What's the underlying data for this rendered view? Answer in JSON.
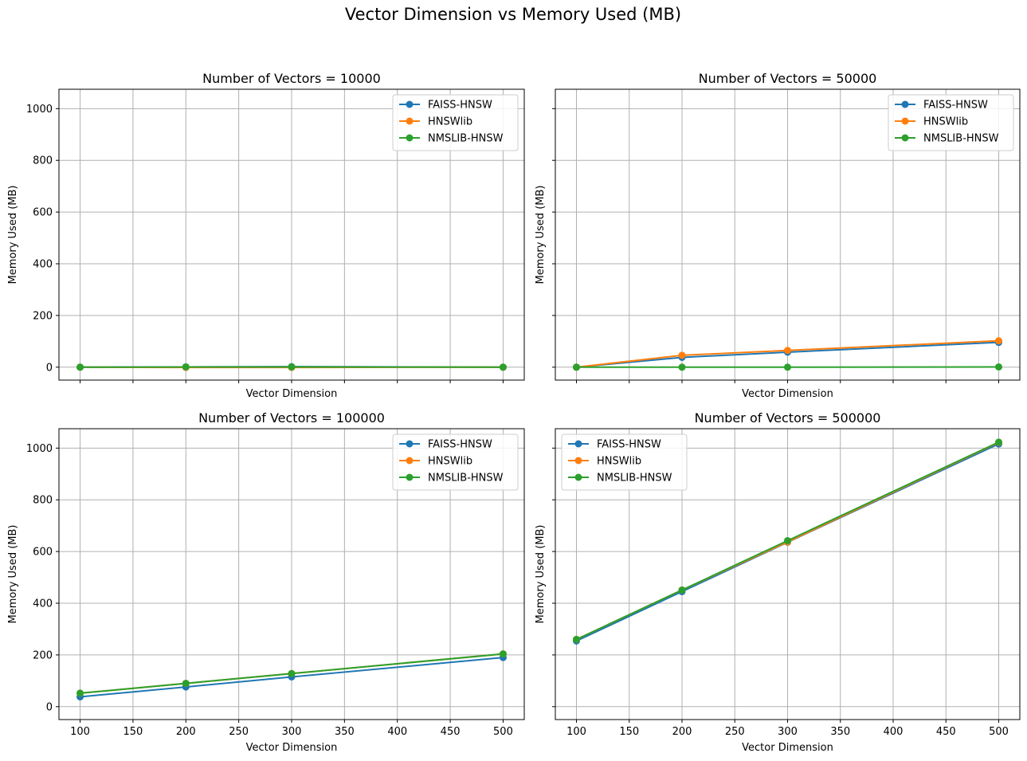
{
  "figure": {
    "title": "Vector Dimension vs Memory Used (MB)"
  },
  "chart_data": [
    {
      "type": "line",
      "title": "Number of Vectors = 10000",
      "xlabel": "Vector Dimension",
      "ylabel": "Memory Used (MB)",
      "x": [
        100,
        200,
        300,
        500
      ],
      "xlim": [
        80,
        520
      ],
      "ylim": [
        -50,
        1075
      ],
      "xticks": [
        100,
        150,
        200,
        250,
        300,
        350,
        400,
        450,
        500
      ],
      "yticks": [
        0,
        200,
        400,
        600,
        800,
        1000
      ],
      "show_xticklabels": false,
      "show_yticklabels": true,
      "grid": true,
      "legend_loc": "upper right",
      "series": [
        {
          "name": "FAISS-HNSW",
          "values": [
            0,
            1,
            2,
            0
          ]
        },
        {
          "name": "HNSWlib",
          "values": [
            0,
            -1,
            -1,
            0
          ]
        },
        {
          "name": "NMSLIB-HNSW",
          "values": [
            0,
            1,
            1,
            0
          ]
        }
      ]
    },
    {
      "type": "line",
      "title": "Number of Vectors = 50000",
      "xlabel": "Vector Dimension",
      "ylabel": "Memory Used (MB)",
      "x": [
        100,
        200,
        300,
        500
      ],
      "xlim": [
        80,
        520
      ],
      "ylim": [
        -50,
        1075
      ],
      "xticks": [
        100,
        150,
        200,
        250,
        300,
        350,
        400,
        450,
        500
      ],
      "yticks": [
        0,
        200,
        400,
        600,
        800,
        1000
      ],
      "show_xticklabels": false,
      "show_yticklabels": false,
      "grid": true,
      "legend_loc": "upper right",
      "series": [
        {
          "name": "FAISS-HNSW",
          "values": [
            0,
            38,
            58,
            96
          ]
        },
        {
          "name": "HNSWlib",
          "values": [
            0,
            46,
            65,
            102
          ]
        },
        {
          "name": "NMSLIB-HNSW",
          "values": [
            0,
            0,
            0,
            1
          ]
        }
      ]
    },
    {
      "type": "line",
      "title": "Number of Vectors = 100000",
      "xlabel": "Vector Dimension",
      "ylabel": "Memory Used (MB)",
      "x": [
        100,
        200,
        300,
        500
      ],
      "xlim": [
        80,
        520
      ],
      "ylim": [
        -50,
        1075
      ],
      "xticks": [
        100,
        150,
        200,
        250,
        300,
        350,
        400,
        450,
        500
      ],
      "yticks": [
        0,
        200,
        400,
        600,
        800,
        1000
      ],
      "show_xticklabels": true,
      "show_yticklabels": true,
      "grid": true,
      "legend_loc": "upper right",
      "series": [
        {
          "name": "FAISS-HNSW",
          "values": [
            38,
            76,
            115,
            190
          ]
        },
        {
          "name": "HNSWlib",
          "values": [
            52,
            90,
            128,
            204
          ]
        },
        {
          "name": "NMSLIB-HNSW",
          "values": [
            52,
            90,
            128,
            204
          ]
        }
      ]
    },
    {
      "type": "line",
      "title": "Number of Vectors = 500000",
      "xlabel": "Vector Dimension",
      "ylabel": "Memory Used (MB)",
      "x": [
        100,
        200,
        300,
        500
      ],
      "xlim": [
        80,
        520
      ],
      "ylim": [
        -50,
        1075
      ],
      "xticks": [
        100,
        150,
        200,
        250,
        300,
        350,
        400,
        450,
        500
      ],
      "yticks": [
        0,
        200,
        400,
        600,
        800,
        1000
      ],
      "show_xticklabels": true,
      "show_yticklabels": false,
      "grid": true,
      "legend_loc": "upper left",
      "series": [
        {
          "name": "FAISS-HNSW",
          "values": [
            254,
            445,
            636,
            1016
          ]
        },
        {
          "name": "HNSWlib",
          "values": [
            260,
            451,
            637,
            1022
          ]
        },
        {
          "name": "NMSLIB-HNSW",
          "values": [
            260,
            451,
            642,
            1023
          ]
        }
      ]
    }
  ],
  "colors": {
    "FAISS-HNSW": "#1f77b4",
    "HNSWlib": "#ff7f0e",
    "NMSLIB-HNSW": "#2ca02c",
    "grid": "#b0b0b0",
    "axes": "#000000"
  }
}
